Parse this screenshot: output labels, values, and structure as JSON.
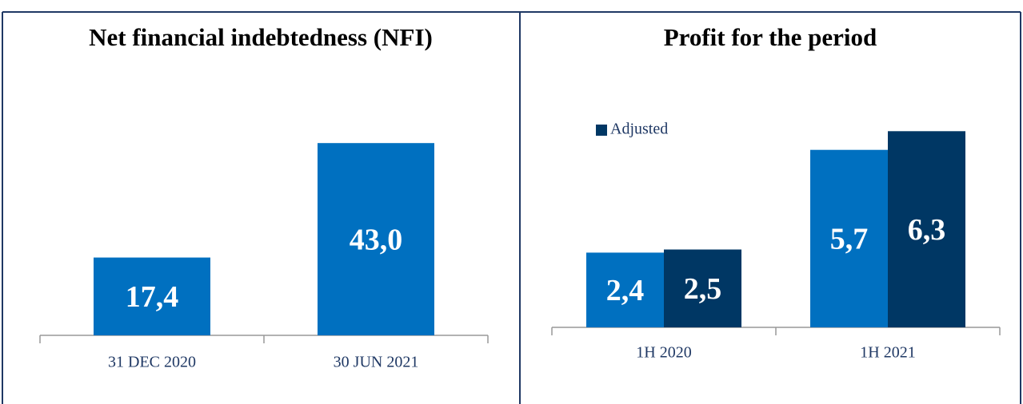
{
  "chart_data": [
    {
      "type": "bar",
      "title": "Net financial indebtedness (NFI)",
      "categories": [
        "31 DEC 2020",
        "30 JUN 2021"
      ],
      "values": [
        17.4,
        43.0
      ],
      "value_labels": [
        "17,4",
        "43,0"
      ],
      "color": "#0070c0"
    },
    {
      "type": "grouped-bar",
      "title": "Profit for the period",
      "categories": [
        "1H 2020",
        "1H 2021"
      ],
      "series": [
        {
          "color": "#0070c0",
          "values": [
            2.4,
            5.7
          ],
          "value_labels": [
            "2,4",
            "5,7"
          ]
        },
        {
          "name": "Adjusted",
          "color": "#003764",
          "values": [
            2.5,
            6.3
          ],
          "value_labels": [
            "2,5",
            "6,3"
          ]
        }
      ]
    }
  ]
}
